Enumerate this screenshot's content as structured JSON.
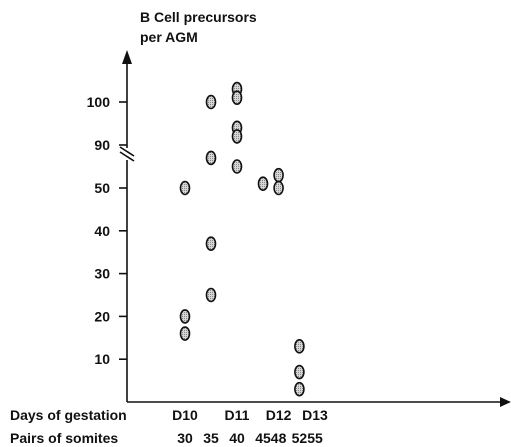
{
  "chart_data": {
    "type": "scatter",
    "title": "",
    "ylabel_lines": [
      "B Cell precursors",
      "per AGM"
    ],
    "xlabel_rows": {
      "days": {
        "name": "Days of gestation",
        "ticks": [
          {
            "label": "D10",
            "somites": 30
          },
          {
            "label": "D11",
            "somites": 40
          },
          {
            "label": "D12",
            "somites": 48
          },
          {
            "label": "D13",
            "somites": 55
          }
        ]
      },
      "somites": {
        "name": "Pairs of somites",
        "ticks": [
          30,
          35,
          40,
          45,
          48,
          52,
          55
        ]
      }
    },
    "y_axis": {
      "broken": true,
      "lower_ticks": [
        10,
        20,
        30,
        40,
        50
      ],
      "upper_ticks": [
        90,
        100
      ],
      "lower_range": [
        0,
        54
      ],
      "upper_range": [
        85,
        104
      ]
    },
    "grid": false,
    "legend": "none",
    "marker_color": "#888888",
    "series": [
      {
        "points": [
          {
            "x": 30,
            "y": 50
          },
          {
            "x": 30,
            "y": 20
          },
          {
            "x": 30,
            "y": 16
          },
          {
            "x": 35,
            "y": 100
          },
          {
            "x": 35,
            "y": 87
          },
          {
            "x": 35,
            "y": 37
          },
          {
            "x": 35,
            "y": 25
          },
          {
            "x": 40,
            "y": 103
          },
          {
            "x": 40,
            "y": 101
          },
          {
            "x": 40,
            "y": 94
          },
          {
            "x": 40,
            "y": 92
          },
          {
            "x": 40,
            "y": 85
          },
          {
            "x": 45,
            "y": 51
          },
          {
            "x": 48,
            "y": 53
          },
          {
            "x": 48,
            "y": 50
          },
          {
            "x": 52,
            "y": 13
          },
          {
            "x": 52,
            "y": 7
          },
          {
            "x": 52,
            "y": 3
          }
        ]
      }
    ]
  }
}
